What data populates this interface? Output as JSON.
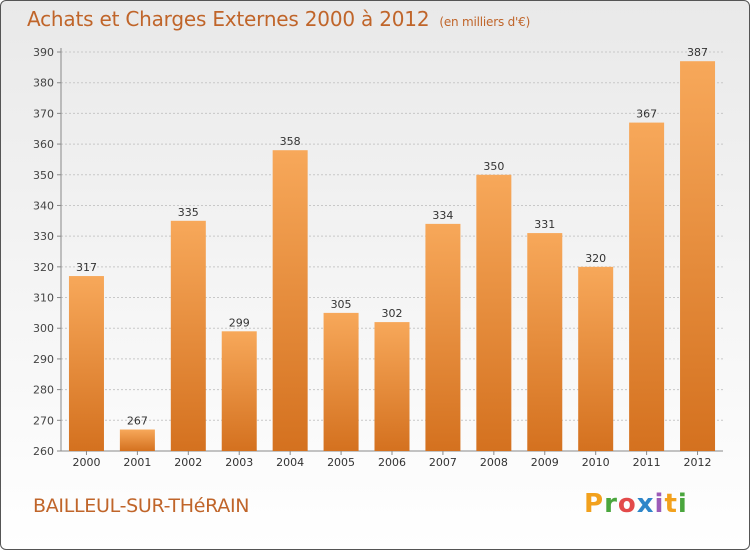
{
  "title": "Achats et Charges Externes 2000 à 2012",
  "title_unit": "(en milliers d'€)",
  "commune": "BAILLEUL-SUR-THéRAIN",
  "brand": {
    "letters": [
      "P",
      "r",
      "o",
      "x",
      "i",
      "t",
      "i"
    ],
    "colors": [
      "#f2a11d",
      "#4aa63d",
      "#e34a4a",
      "#2e86c9",
      "#9c5bb8",
      "#f2a11d",
      "#4aa63d"
    ]
  },
  "colors": {
    "bar_top": "#f7a85a",
    "bar_bottom": "#d4711f",
    "title": "#c0652a"
  },
  "chart_data": {
    "type": "bar",
    "categories": [
      "2000",
      "2001",
      "2002",
      "2003",
      "2004",
      "2005",
      "2006",
      "2007",
      "2008",
      "2009",
      "2010",
      "2011",
      "2012"
    ],
    "values": [
      317,
      267,
      335,
      299,
      358,
      305,
      302,
      334,
      350,
      331,
      320,
      367,
      387
    ],
    "title": "Achats et Charges Externes 2000 à 2012",
    "ylim": [
      260,
      390
    ],
    "yticks": [
      260,
      270,
      280,
      290,
      300,
      310,
      320,
      330,
      340,
      350,
      360,
      370,
      380,
      390
    ],
    "grid": true
  }
}
